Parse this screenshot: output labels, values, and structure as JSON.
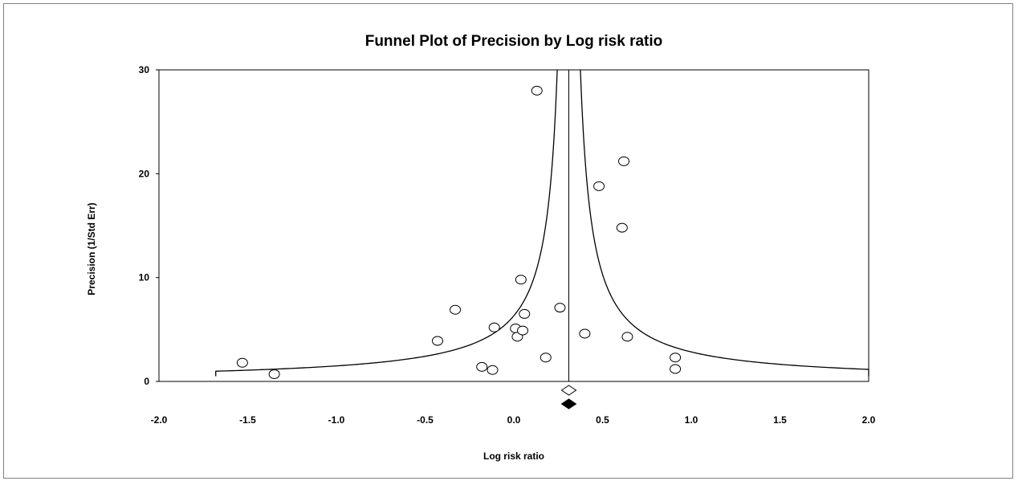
{
  "chart_data": {
    "type": "scatter",
    "title": "Funnel Plot of Precision by Log risk ratio",
    "xlabel": "Log risk ratio",
    "ylabel": "Precision (1/Std Err)",
    "xlim": [
      -2.0,
      2.0
    ],
    "ylim": [
      0,
      30
    ],
    "x_ticks": [
      "-2.0",
      "-1.5",
      "-1.0",
      "-0.5",
      "0.0",
      "0.5",
      "1.0",
      "1.5",
      "2.0"
    ],
    "y_ticks": [
      "0",
      "10",
      "20",
      "30"
    ],
    "grid": false,
    "legend": false,
    "marker": "open-circle",
    "summary_effect": 0.31,
    "funnel_lines": "pseudo 95% limits around summary effect",
    "observed_summary_marker": "open-diamond",
    "imputed_summary_marker": "filled-diamond",
    "points": [
      {
        "x": -1.53,
        "y": 1.8
      },
      {
        "x": -1.35,
        "y": 0.7
      },
      {
        "x": -0.43,
        "y": 3.9
      },
      {
        "x": -0.33,
        "y": 6.9
      },
      {
        "x": -0.18,
        "y": 1.4
      },
      {
        "x": -0.12,
        "y": 1.1
      },
      {
        "x": -0.11,
        "y": 5.2
      },
      {
        "x": 0.01,
        "y": 5.1
      },
      {
        "x": 0.02,
        "y": 4.3
      },
      {
        "x": 0.04,
        "y": 9.8
      },
      {
        "x": 0.05,
        "y": 4.9
      },
      {
        "x": 0.06,
        "y": 6.5
      },
      {
        "x": 0.18,
        "y": 2.3
      },
      {
        "x": 0.13,
        "y": 28.0
      },
      {
        "x": 0.26,
        "y": 7.1
      },
      {
        "x": 0.4,
        "y": 4.6
      },
      {
        "x": 0.48,
        "y": 18.8
      },
      {
        "x": 0.61,
        "y": 14.8
      },
      {
        "x": 0.62,
        "y": 21.2
      },
      {
        "x": 0.64,
        "y": 4.3
      },
      {
        "x": 0.91,
        "y": 2.3
      },
      {
        "x": 0.91,
        "y": 1.2
      }
    ]
  }
}
